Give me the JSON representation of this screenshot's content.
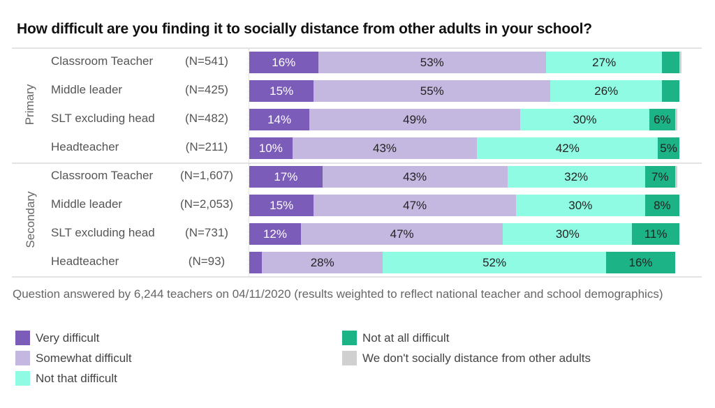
{
  "title": "How difficult are you finding it to socially distance from other adults in your school?",
  "note": "Question answered by 6,244 teachers on 04/11/2020 (results weighted to reflect national teacher and school demographics)",
  "legend": [
    {
      "label": "Very difficult",
      "color": "#7b5cb8"
    },
    {
      "label": "Somewhat difficult",
      "color": "#c5b8e0"
    },
    {
      "label": "Not that difficult",
      "color": "#8ffbe3"
    },
    {
      "label": "Not at all difficult",
      "color": "#1cb386"
    },
    {
      "label": "We don't socially distance from other adults",
      "color": "#d0d0d0"
    }
  ],
  "chart_data": {
    "type": "bar",
    "orientation": "horizontal",
    "stacked": true,
    "title": "How difficult are you finding it to socially distance from other adults in your school?",
    "xlim": [
      0,
      100
    ],
    "unit": "%",
    "series_names": [
      "Very difficult",
      "Somewhat difficult",
      "Not that difficult",
      "Not at all difficult",
      "We don't socially distance from other adults"
    ],
    "groups": [
      {
        "name": "Primary",
        "rows": [
          {
            "label": "Classroom Teacher",
            "n": "(N=541)",
            "values": [
              16,
              53,
              27,
              4,
              0.5
            ],
            "labels": [
              "16%",
              "53%",
              "27%",
              "",
              ""
            ]
          },
          {
            "label": "Middle leader",
            "n": "(N=425)",
            "values": [
              15,
              55,
              26,
              4,
              0
            ],
            "labels": [
              "15%",
              "55%",
              "26%",
              "",
              ""
            ]
          },
          {
            "label": "SLT excluding head",
            "n": "(N=482)",
            "values": [
              14,
              49,
              30,
              6,
              0.5
            ],
            "labels": [
              "14%",
              "49%",
              "30%",
              "6%",
              ""
            ]
          },
          {
            "label": "Headteacher",
            "n": "(N=211)",
            "values": [
              10,
              43,
              42,
              5,
              0
            ],
            "labels": [
              "10%",
              "43%",
              "42%",
              "5%",
              ""
            ]
          }
        ]
      },
      {
        "name": "Secondary",
        "rows": [
          {
            "label": "Classroom Teacher",
            "n": "(N=1,607)",
            "values": [
              17,
              43,
              32,
              7,
              0.5
            ],
            "labels": [
              "17%",
              "43%",
              "32%",
              "7%",
              ""
            ]
          },
          {
            "label": "Middle leader",
            "n": "(N=2,053)",
            "values": [
              15,
              47,
              30,
              8,
              0
            ],
            "labels": [
              "15%",
              "47%",
              "30%",
              "8%",
              ""
            ]
          },
          {
            "label": "SLT excluding head",
            "n": "(N=731)",
            "values": [
              12,
              47,
              30,
              11,
              0
            ],
            "labels": [
              "12%",
              "47%",
              "30%",
              "11%",
              ""
            ]
          },
          {
            "label": "Headteacher",
            "n": "(N=93)",
            "values": [
              3,
              28,
              52,
              16,
              0
            ],
            "labels": [
              "",
              "28%",
              "52%",
              "16%",
              ""
            ]
          }
        ]
      }
    ],
    "label_colors": [
      "#ffffff",
      "#222222",
      "#222222",
      "#222222",
      "#222222"
    ]
  }
}
